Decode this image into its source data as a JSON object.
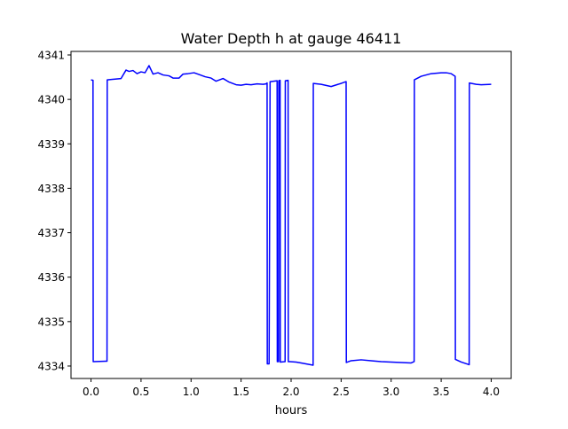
{
  "chart_data": {
    "type": "line",
    "title": "Water Depth h at gauge 46411",
    "xlabel": "hours",
    "ylabel": "",
    "xlim": [
      -0.2,
      4.2
    ],
    "ylim": [
      4333.72,
      4341.08
    ],
    "grid": false,
    "xticks": [
      0.0,
      0.5,
      1.0,
      1.5,
      2.0,
      2.5,
      3.0,
      3.5,
      4.0
    ],
    "xtick_labels": [
      "0.0",
      "0.5",
      "1.0",
      "1.5",
      "2.0",
      "2.5",
      "3.0",
      "3.5",
      "4.0"
    ],
    "yticks": [
      4334,
      4335,
      4336,
      4337,
      4338,
      4339,
      4340,
      4341
    ],
    "ytick_labels": [
      "4334",
      "4335",
      "4336",
      "4337",
      "4338",
      "4339",
      "4340",
      "4341"
    ],
    "series": [
      {
        "color": "#0000ff",
        "x": [
          0.0,
          0.02,
          0.022,
          0.15,
          0.16,
          0.162,
          0.3,
          0.35,
          0.38,
          0.42,
          0.46,
          0.5,
          0.54,
          0.58,
          0.62,
          0.67,
          0.72,
          0.78,
          0.82,
          0.88,
          0.92,
          0.97,
          1.03,
          1.08,
          1.14,
          1.2,
          1.25,
          1.32,
          1.38,
          1.45,
          1.5,
          1.55,
          1.6,
          1.66,
          1.72,
          1.75,
          1.76,
          1.762,
          1.78,
          1.79,
          1.792,
          1.86,
          1.862,
          1.875,
          1.877,
          1.89,
          1.892,
          1.94,
          1.942,
          1.97,
          1.972,
          1.985,
          1.987,
          2.05,
          2.1,
          2.22,
          2.222,
          2.3,
          2.4,
          2.5,
          2.55,
          2.552,
          2.6,
          2.7,
          2.8,
          2.9,
          3.0,
          3.1,
          3.2,
          3.23,
          3.232,
          3.3,
          3.4,
          3.5,
          3.55,
          3.6,
          3.64,
          3.642,
          3.7,
          3.78,
          3.782,
          3.85,
          3.9,
          4.0
        ],
        "y": [
          4340.44,
          4340.43,
          4334.1,
          4334.11,
          4334.11,
          4340.44,
          4340.47,
          4340.66,
          4340.63,
          4340.65,
          4340.58,
          4340.62,
          4340.6,
          4340.76,
          4340.57,
          4340.6,
          4340.55,
          4340.53,
          4340.48,
          4340.48,
          4340.57,
          4340.58,
          4340.6,
          4340.56,
          4340.51,
          4340.48,
          4340.41,
          4340.47,
          4340.39,
          4340.33,
          4340.32,
          4340.34,
          4340.33,
          4340.35,
          4340.34,
          4340.35,
          4340.37,
          4334.05,
          4334.05,
          4340.4,
          4340.4,
          4340.42,
          4334.1,
          4334.1,
          4340.42,
          4340.43,
          4334.09,
          4334.1,
          4340.42,
          4340.43,
          4334.1,
          4334.1,
          4334.1,
          4334.09,
          4334.07,
          4334.02,
          4340.36,
          4340.34,
          4340.29,
          4340.36,
          4340.4,
          4334.08,
          4334.12,
          4334.14,
          4334.12,
          4334.1,
          4334.09,
          4334.08,
          4334.07,
          4334.1,
          4340.44,
          4340.52,
          4340.58,
          4340.6,
          4340.6,
          4340.58,
          4340.52,
          4334.15,
          4334.09,
          4334.03,
          4340.37,
          4340.34,
          4340.33,
          4340.34
        ]
      }
    ]
  }
}
